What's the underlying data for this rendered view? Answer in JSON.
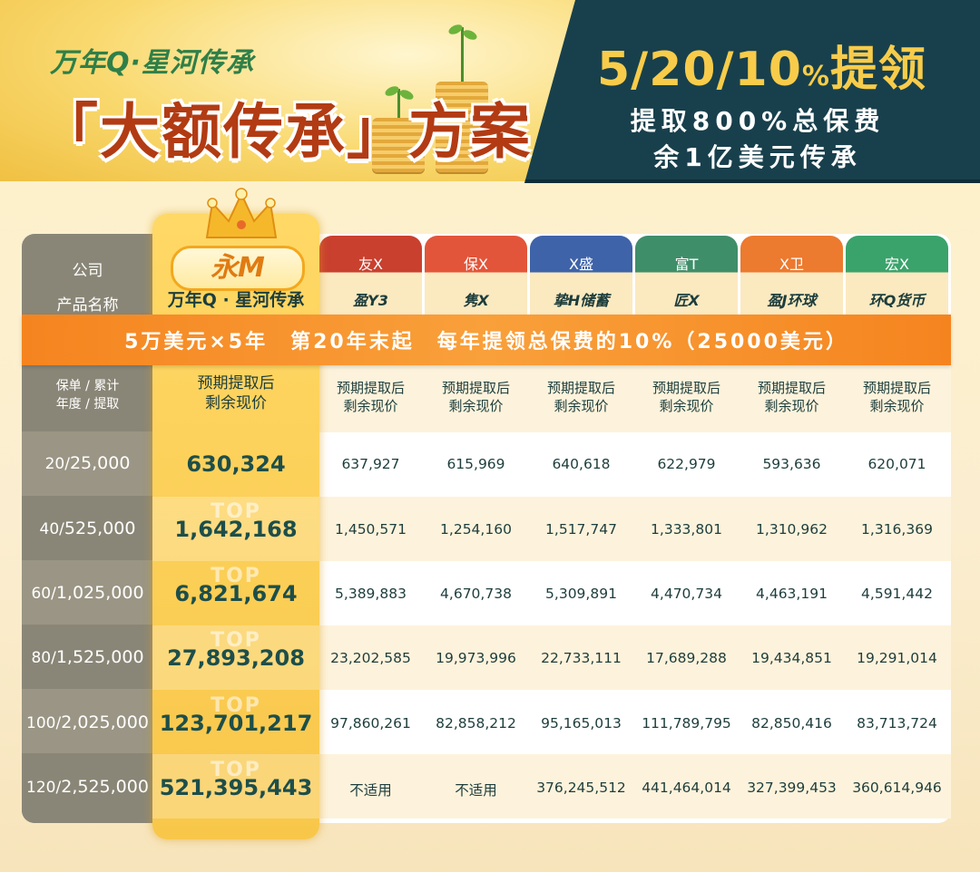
{
  "header": {
    "brand": "万年Q·星河传承",
    "title": "「大额传承」方案",
    "ratio_main": "5/20/10",
    "ratio_pct": "%",
    "ratio_tail": "提领",
    "line1": "提取800%总保费",
    "line2": "余1亿美元传承"
  },
  "table": {
    "company_label": "公司",
    "product_label": "产品名称",
    "year_label_1": "保单",
    "year_label_2": "年度",
    "withdraw_label_1": "累计",
    "withdraw_label_2": "提取",
    "banner": "5万美元×5年　第20年末起　每年提领总保费的10%（25000美元）",
    "star": {
      "badge": "永M",
      "product": "万年Q · 星河传承",
      "header_1": "预期提取后",
      "header_2": "剩余现价",
      "top_mark": "TOP",
      "values": [
        "630,324",
        "1,642,168",
        "6,821,674",
        "27,893,208",
        "123,701,217",
        "521,395,443"
      ]
    },
    "rows": [
      {
        "year": "20",
        "withdraw": "25,000"
      },
      {
        "year": "40",
        "withdraw": "525,000"
      },
      {
        "year": "60",
        "withdraw": "1,025,000"
      },
      {
        "year": "80",
        "withdraw": "1,525,000"
      },
      {
        "year": "100",
        "withdraw": "2,025,000"
      },
      {
        "year": "120",
        "withdraw": "2,525,000"
      }
    ],
    "competitors": [
      {
        "company": "友X",
        "product": "盈Y3",
        "color": "#c9402f",
        "header_1": "预期提取后",
        "header_2": "剩余现价",
        "values": [
          "637,927",
          "1,450,571",
          "5,389,883",
          "23,202,585",
          "97,860,261",
          "不适用"
        ]
      },
      {
        "company": "保X",
        "product": "隽X",
        "color": "#e3553a",
        "header_1": "预期提取后",
        "header_2": "剩余现价",
        "values": [
          "615,969",
          "1,254,160",
          "4,670,738",
          "19,973,996",
          "82,858,212",
          "不适用"
        ]
      },
      {
        "company": "X盛",
        "product": "挚H储蓄",
        "color": "#3f63a8",
        "header_1": "预期提取后",
        "header_2": "剩余现价",
        "values": [
          "640,618",
          "1,517,747",
          "5,309,891",
          "22,733,111",
          "95,165,013",
          "376,245,512"
        ]
      },
      {
        "company": "富T",
        "product": "匠X",
        "color": "#3f8e6a",
        "header_1": "预期提取后",
        "header_2": "剩余现价",
        "values": [
          "622,979",
          "1,333,801",
          "4,470,734",
          "17,689,288",
          "111,789,795",
          "441,464,014"
        ]
      },
      {
        "company": "X卫",
        "product": "盈J环球",
        "color": "#ec7a2f",
        "header_1": "预期提取后",
        "header_2": "剩余现价",
        "values": [
          "593,636",
          "1,310,962",
          "4,463,191",
          "19,434,851",
          "82,850,416",
          "327,399,453"
        ]
      },
      {
        "company": "宏X",
        "product": "环Q货币",
        "color": "#3aa36b",
        "header_1": "预期提取后",
        "header_2": "剩余现价",
        "values": [
          "620,071",
          "1,316,369",
          "4,591,442",
          "19,291,014",
          "83,713,724",
          "360,614,946"
        ]
      }
    ]
  }
}
